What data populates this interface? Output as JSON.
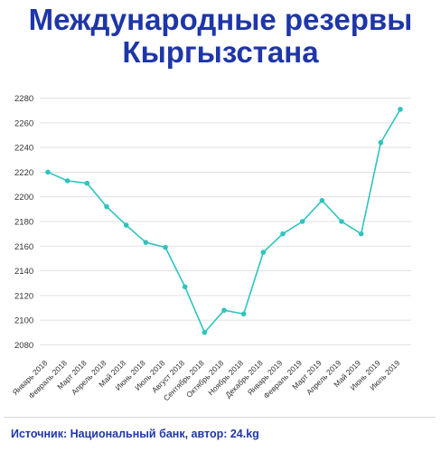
{
  "title_line1": "Международные резервы",
  "title_line2": "Кыргызстана",
  "source": "Источник: Национальный банк, автор: 24.kg",
  "colors": {
    "title": "#1f36a8",
    "line": "#2ec4be",
    "grid": "#e0e0e0"
  },
  "chart_data": {
    "type": "line",
    "title": "Международные резервы Кыргызстана",
    "xlabel": "",
    "ylabel": "",
    "ylim": [
      2070,
      2290
    ],
    "yticks": [
      2080,
      2100,
      2120,
      2140,
      2160,
      2180,
      2200,
      2220,
      2240,
      2260,
      2280
    ],
    "grid": true,
    "categories": [
      "Январь 2018",
      "Февраль 2018",
      "Март 2018",
      "Апрель 2018",
      "Май 2018",
      "Июнь 2018",
      "Июль 2018",
      "Август 2018",
      "Сентябрь 2018",
      "Октябрь 2018",
      "Ноябрь 2018",
      "Декабрь 2018",
      "Январь 2019",
      "Февраль 2019",
      "Март 2019",
      "Апрель 2019",
      "Май 2019",
      "Июнь 2019",
      "Июль 2019"
    ],
    "series": [
      {
        "values": [
          2220,
          2213,
          2211,
          2192,
          2177,
          2163,
          2159,
          2127,
          2090,
          2108,
          2105,
          2155,
          2170,
          2180,
          2197,
          2180,
          2170,
          2244,
          2271
        ]
      }
    ]
  }
}
